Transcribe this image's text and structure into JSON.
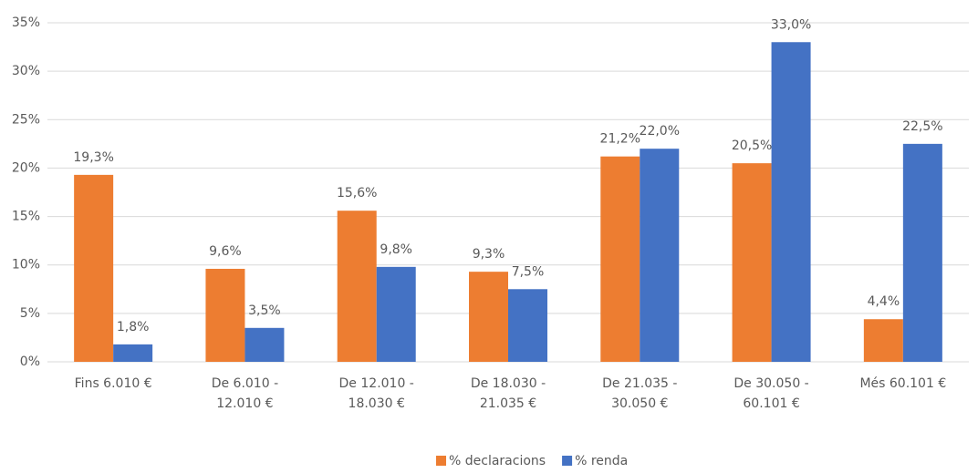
{
  "chart_data": {
    "type": "bar",
    "categories": [
      [
        "Fins 6.010 €"
      ],
      [
        "De 6.010 -",
        "12.010 €"
      ],
      [
        "De 12.010 -",
        "18.030 €"
      ],
      [
        "De 18.030 -",
        "21.035 €"
      ],
      [
        "De 21.035 -",
        "30.050 €"
      ],
      [
        "De 30.050 -",
        "60.101 €"
      ],
      [
        "Més 60.101 €"
      ]
    ],
    "series": [
      {
        "name": "% declaracions",
        "color": "#ED7D31",
        "values": [
          19.3,
          9.6,
          15.6,
          9.3,
          21.2,
          20.5,
          4.4
        ],
        "value_labels": [
          "19,3%",
          "9,6%",
          "15,6%",
          "9,3%",
          "21,2%",
          "20,5%",
          "4,4%"
        ]
      },
      {
        "name": "% renda",
        "color": "#4472C4",
        "values": [
          1.8,
          3.5,
          9.8,
          7.5,
          22.0,
          33.0,
          22.5
        ],
        "value_labels": [
          "1,8%",
          "3,5%",
          "9,8%",
          "7,5%",
          "22,0%",
          "33,0%",
          "22,5%"
        ]
      }
    ],
    "ylim": [
      0,
      35
    ],
    "yticks": [
      {
        "value": 0,
        "label": "0%"
      },
      {
        "value": 5,
        "label": "5%"
      },
      {
        "value": 10,
        "label": "10%"
      },
      {
        "value": 15,
        "label": "15%"
      },
      {
        "value": 20,
        "label": "20%"
      },
      {
        "value": 25,
        "label": "25%"
      },
      {
        "value": 30,
        "label": "30%"
      },
      {
        "value": 35,
        "label": "35%"
      }
    ],
    "grid": true,
    "legend": "bottom"
  }
}
